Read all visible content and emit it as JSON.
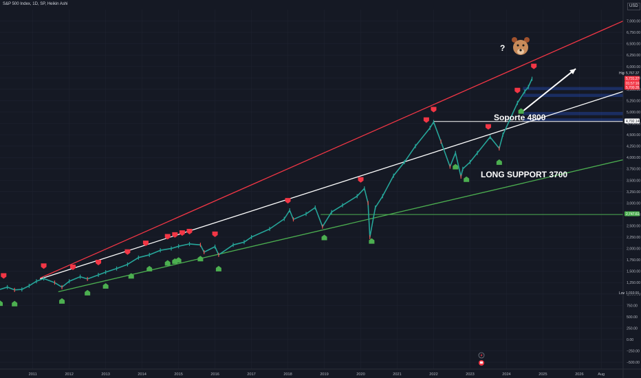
{
  "header": {
    "title": "S&P 500 Index, 1D, SP, Heikin Ashi",
    "currency": "USD"
  },
  "colors": {
    "background": "#151924",
    "grid": "#1f2330",
    "candle_up": "#26a69a",
    "candle_down": "#ef5350",
    "resistance_line": "#f23645",
    "support_line": "#4caf50",
    "trend_line": "#ffffff",
    "zone": "#2962ff",
    "signal_sell": "#f23645",
    "signal_buy": "#4caf50"
  },
  "annotations": {
    "question_mark": "?",
    "bear_icon": "bear-face-icon",
    "soporte": "Soporte 4800",
    "long_support": "LONG SUPPORT 3700"
  },
  "price_tags": [
    {
      "label": "High",
      "value": "5,767.37",
      "color": "#151924",
      "text_color": "#d1d4dc"
    },
    {
      "label": "",
      "value": "5,731.27",
      "color": "#f23645",
      "text_color": "#ffffff"
    },
    {
      "label": "",
      "value": "01:57:16",
      "color": "#f23645",
      "text_color": "#ffffff"
    },
    {
      "label": "",
      "value": "5,700.35",
      "color": "#f23645",
      "text_color": "#ffffff"
    },
    {
      "label": "",
      "value": "4,792.14",
      "color": "#ffffff",
      "text_color": "#131722"
    },
    {
      "label": "",
      "value": "2,747.61",
      "color": "#4caf50",
      "text_color": "#ffffff"
    },
    {
      "label": "Low",
      "value": "1,010.91",
      "color": "#151924",
      "text_color": "#d1d4dc"
    }
  ],
  "bottom_icons": [
    "lightning-icon",
    "event-flag-icon"
  ],
  "chart_data": {
    "type": "line",
    "title": "S&P 500 Index, 1D, SP, Heikin Ashi",
    "xlabel": "",
    "ylabel": "",
    "y_tick_labels": [
      "−500.00",
      "−250.00",
      "0.00",
      "250.00",
      "500.00",
      "750.00",
      "1,000.00",
      "1,250.00",
      "1,500.00",
      "1,750.00",
      "2,000.00",
      "2,250.00",
      "2,500.00",
      "2,750.00",
      "3,000.00",
      "3,250.00",
      "3,500.00",
      "3,750.00",
      "4,000.00",
      "4,250.00",
      "4,500.00",
      "4,750.00",
      "5,000.00",
      "5,250.00",
      "5,500.00",
      "5,750.00",
      "6,000.00",
      "6,250.00",
      "6,500.00",
      "6,750.00",
      "7,000.00"
    ],
    "y_ticks": [
      -500,
      -250,
      0,
      250,
      500,
      750,
      1000,
      1250,
      1500,
      1750,
      2000,
      2250,
      2500,
      2750,
      3000,
      3250,
      3500,
      3750,
      4000,
      4250,
      4500,
      4750,
      5000,
      5250,
      5500,
      5750,
      6000,
      6250,
      6500,
      6750,
      7000
    ],
    "x_tick_labels": [
      "2011",
      "2012",
      "2013",
      "2014",
      "2015",
      "2016",
      "2017",
      "2018",
      "2019",
      "2020",
      "2021",
      "2022",
      "2023",
      "2024",
      "2025",
      "2026",
      "Aug"
    ],
    "x_ticks": [
      2011.0,
      2012.0,
      2013.0,
      2014.0,
      2015.0,
      2016.0,
      2017.0,
      2018.0,
      2019.0,
      2020.0,
      2021.0,
      2022.0,
      2023.0,
      2024.0,
      2025.0,
      2026.0,
      2026.6
    ],
    "xlim": [
      2010.1,
      2027.2
    ],
    "ylim": [
      -650,
      7250
    ],
    "series": [
      {
        "kind": "price",
        "x": [
          2010.1,
          2010.3,
          2010.5,
          2010.7,
          2010.9,
          2011.1,
          2011.3,
          2011.6,
          2011.8,
          2012.0,
          2012.3,
          2012.5,
          2012.8,
          2013.0,
          2013.3,
          2013.6,
          2013.9,
          2014.2,
          2014.5,
          2014.8,
          2015.0,
          2015.3,
          2015.6,
          2015.7,
          2016.0,
          2016.1,
          2016.5,
          2016.8,
          2017.0,
          2017.5,
          2017.9,
          2018.05,
          2018.15,
          2018.5,
          2018.75,
          2018.95,
          2019.2,
          2019.5,
          2019.9,
          2020.1,
          2020.2,
          2020.25,
          2020.4,
          2020.6,
          2020.9,
          2021.2,
          2021.5,
          2021.9,
          2022.0,
          2022.2,
          2022.45,
          2022.6,
          2022.75,
          2022.8,
          2023.0,
          2023.2,
          2023.55,
          2023.8,
          2023.9,
          2024.1,
          2024.3,
          2024.5,
          2024.6,
          2024.7
        ],
        "values": [
          1100,
          1150,
          1090,
          1100,
          1180,
          1280,
          1340,
          1250,
          1150,
          1280,
          1380,
          1330,
          1420,
          1480,
          1560,
          1650,
          1800,
          1860,
          1960,
          2000,
          2050,
          2100,
          2080,
          1920,
          2040,
          1860,
          2080,
          2140,
          2250,
          2430,
          2650,
          2840,
          2640,
          2760,
          2900,
          2480,
          2800,
          2950,
          3150,
          3320,
          3000,
          2250,
          2900,
          3150,
          3600,
          3900,
          4250,
          4650,
          4780,
          4350,
          3800,
          4100,
          3580,
          3750,
          3900,
          4100,
          4450,
          4200,
          4500,
          4850,
          5200,
          5450,
          5550,
          5730
        ]
      },
      {
        "kind": "resistance_line",
        "x": [
          2011.2,
          2027.2
        ],
        "values": [
          1350,
          7000
        ]
      },
      {
        "kind": "trend_line",
        "x": [
          2011.2,
          2027.2
        ],
        "values": [
          1330,
          5450
        ]
      },
      {
        "kind": "support_line",
        "x": [
          2011.7,
          2027.2
        ],
        "values": [
          1050,
          3950
        ]
      },
      {
        "kind": "horizontal_support",
        "x": [
          2018.9,
          2027.2
        ],
        "values": [
          2747.61,
          2747.61
        ]
      },
      {
        "kind": "horizontal_soporte",
        "x": [
          2022.0,
          2027.2
        ],
        "values": [
          4792.14,
          4792.14
        ]
      }
    ],
    "signals_sell_x": [
      2010.2,
      2011.3,
      2012.1,
      2012.8,
      2013.6,
      2014.1,
      2014.7,
      2014.9,
      2015.1,
      2015.3,
      2016.0,
      2018.0,
      2020.0,
      2021.8,
      2022.0,
      2023.5,
      2024.3,
      2024.75
    ],
    "signals_buy_x": [
      2010.1,
      2010.5,
      2011.8,
      2012.5,
      2013.0,
      2013.7,
      2014.2,
      2014.7,
      2014.9,
      2015.0,
      2015.6,
      2016.1,
      2019.0,
      2020.3,
      2022.6,
      2022.9,
      2023.8,
      2024.4
    ]
  }
}
